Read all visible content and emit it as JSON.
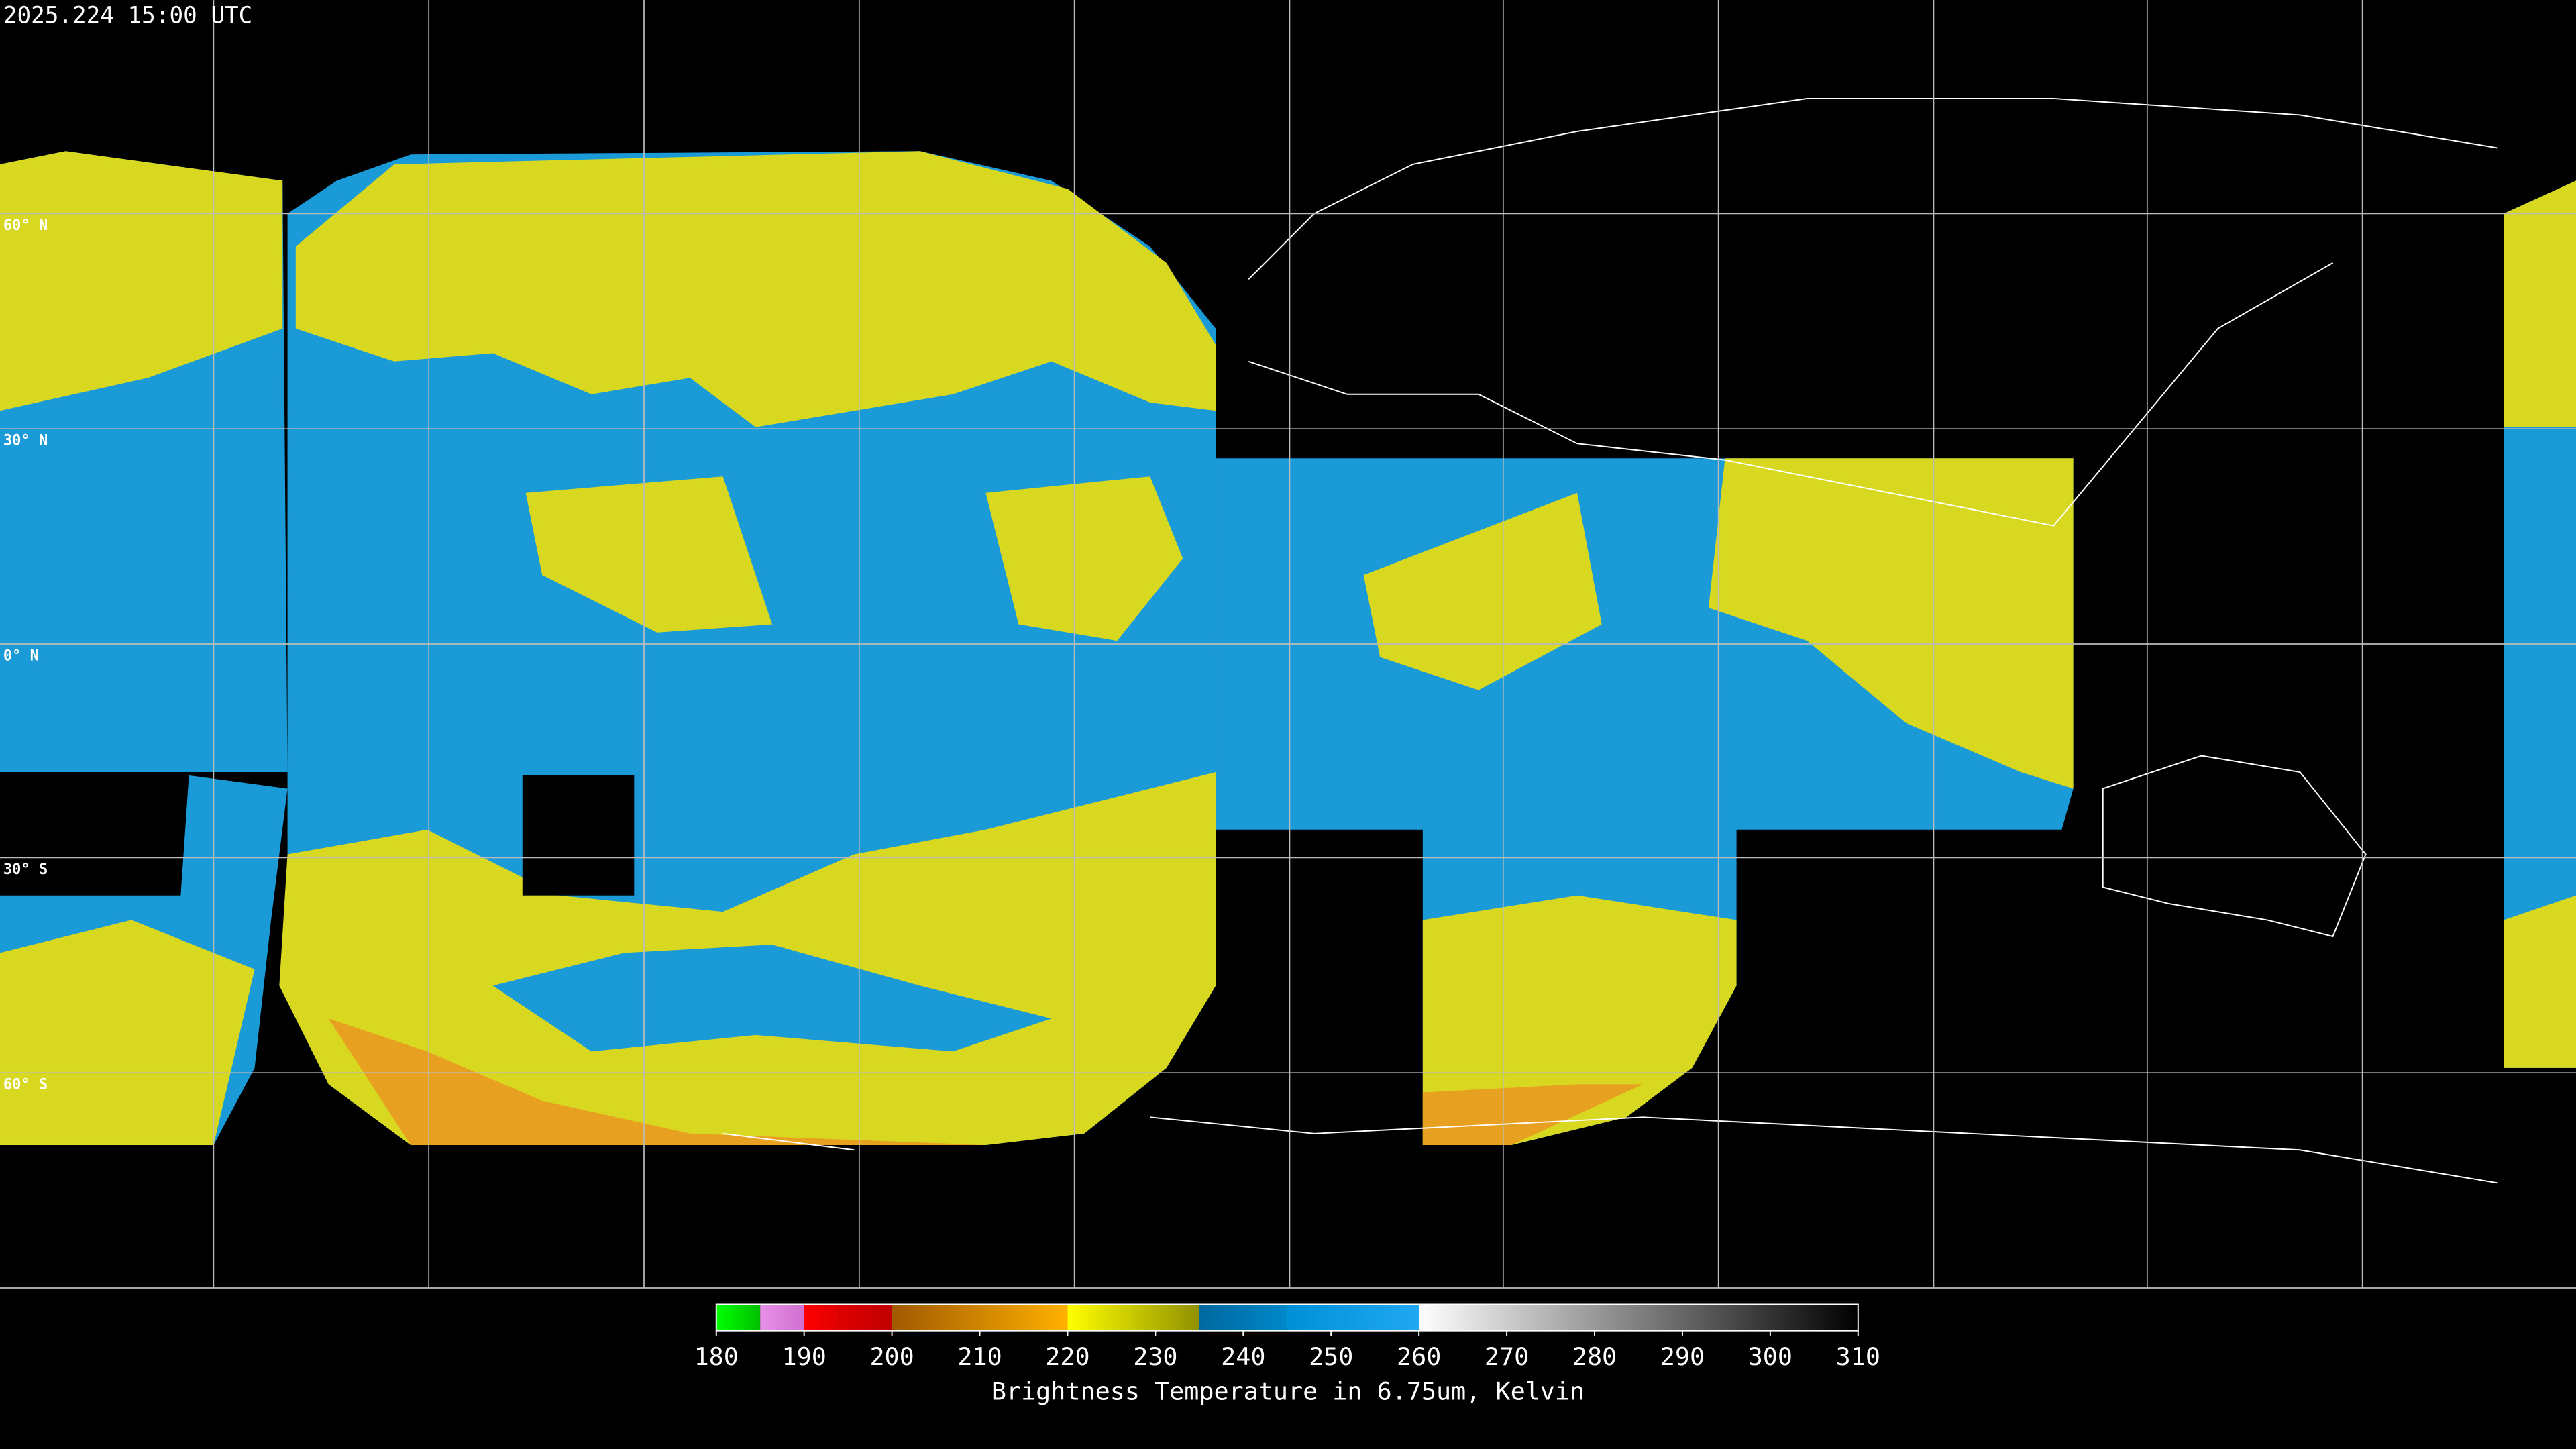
{
  "header": {
    "timestamp": "2025.224 15:00 UTC"
  },
  "map": {
    "lat_labels": [
      "60° N",
      "30° N",
      "0° N",
      "30° S",
      "60° S"
    ]
  },
  "chart_data": {
    "type": "colorbar",
    "xlabel": "Brightness Temperature in 6.75um, Kelvin",
    "xlim": [
      180,
      310
    ],
    "xticks": [
      180,
      190,
      200,
      210,
      220,
      230,
      240,
      250,
      260,
      270,
      280,
      290,
      300,
      310
    ],
    "segments": [
      {
        "from": 180,
        "to": 185,
        "colors": [
          "#00ff00",
          "#00c000"
        ]
      },
      {
        "from": 185,
        "to": 190,
        "colors": [
          "#e890e8",
          "#d070d0"
        ]
      },
      {
        "from": 190,
        "to": 194,
        "colors": [
          "#ff0000",
          "#e00000"
        ]
      },
      {
        "from": 194,
        "to": 200,
        "colors": [
          "#e00000",
          "#c00000"
        ]
      },
      {
        "from": 200,
        "to": 220,
        "colors": [
          "#a05a00",
          "#ffb000"
        ]
      },
      {
        "from": 220,
        "to": 235,
        "colors": [
          "#ffff00",
          "#909000"
        ]
      },
      {
        "from": 235,
        "to": 245,
        "colors": [
          "#0068a0",
          "#0088c8"
        ]
      },
      {
        "from": 245,
        "to": 260,
        "colors": [
          "#0090d8",
          "#20a8f0"
        ]
      },
      {
        "from": 260,
        "to": 310,
        "colors": [
          "#ffffff",
          "#000000"
        ]
      }
    ]
  }
}
